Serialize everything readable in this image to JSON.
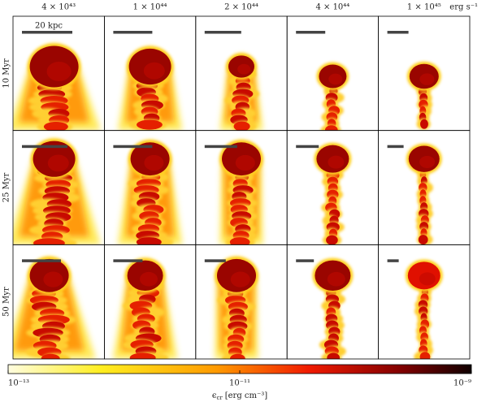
{
  "columns": [
    "4 × 10⁴³",
    "1 × 10⁴⁴",
    "2 × 10⁴⁴",
    "4 × 10⁴⁴",
    "1 × 10⁴⁵"
  ],
  "column_unit": "erg s⁻¹",
  "rows": [
    "10 Myr",
    "25 Myr",
    "50 Myr"
  ],
  "scale_bar_label": "20 kpc",
  "colorbar": {
    "scale": "log",
    "lim": [
      1e-13,
      1e-09
    ],
    "ticks": [
      {
        "value": 1e-13,
        "label": "10⁻¹³"
      },
      {
        "value": 1e-11,
        "label": "10⁻¹¹"
      },
      {
        "value": 1e-09,
        "label": "10⁻⁹"
      }
    ],
    "label_symbol": "ϵ",
    "label_subscript": "cr",
    "label_unit": "[erg cm⁻³]"
  }
}
